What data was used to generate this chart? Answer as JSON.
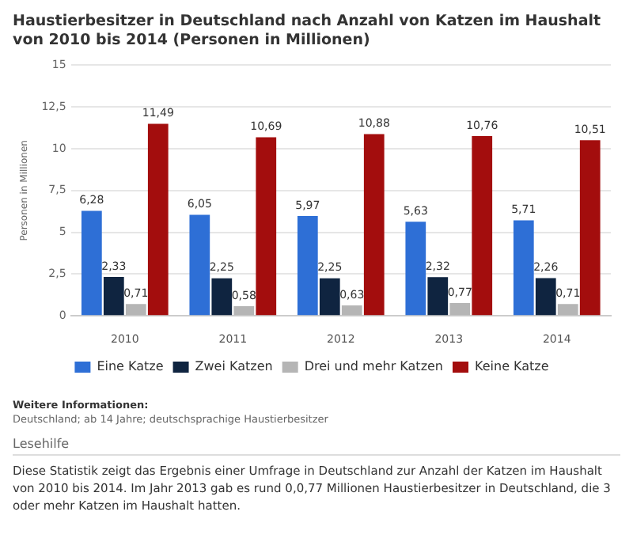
{
  "chart_data": {
    "type": "bar",
    "title": "Haustierbesitzer in Deutschland nach Anzahl von Katzen im Haushalt von 2010 bis 2014 (Personen in Millionen)",
    "ylabel": "Personen in Millionen",
    "categories": [
      "2010",
      "2011",
      "2012",
      "2013",
      "2014"
    ],
    "series": [
      {
        "name": "Eine Katze",
        "color": "#2e6fd6",
        "values": [
          6.28,
          6.05,
          5.97,
          5.63,
          5.71
        ],
        "value_labels": [
          "6,28",
          "6,05",
          "5,97",
          "5,63",
          "5,71"
        ]
      },
      {
        "name": "Zwei Katzen",
        "color": "#0f2440",
        "values": [
          2.33,
          2.25,
          2.25,
          2.32,
          2.26
        ],
        "value_labels": [
          "2,33",
          "2,25",
          "2,25",
          "2,32",
          "2,26"
        ]
      },
      {
        "name": "Drei und mehr Katzen",
        "color": "#b5b5b5",
        "values": [
          0.71,
          0.58,
          0.63,
          0.77,
          0.71
        ],
        "value_labels": [
          "0,71",
          "0,58",
          "0,63",
          "0,77",
          "0,71"
        ]
      },
      {
        "name": "Keine Katze",
        "color": "#a30d0d",
        "values": [
          11.49,
          10.69,
          10.88,
          10.76,
          10.51
        ],
        "value_labels": [
          "11,49",
          "10,69",
          "10,88",
          "10,76",
          "10,51"
        ]
      }
    ],
    "ylim": [
      0,
      15
    ],
    "yticks": [
      0,
      {
        "value": 2.5,
        "label": "2,5"
      },
      5,
      {
        "value": 7.5,
        "label": "7,5"
      },
      10,
      {
        "value": 12.5,
        "label": "12,5"
      },
      15
    ],
    "grid": "y",
    "legend": "bottom",
    "annotations": [
      "Weitere Informationen:",
      "Deutschland; ab 14 Jahre; deutschsprachige Haustierbesitzer",
      "Lesehilfe",
      "Diese Statistik zeigt das Ergebnis einer Umfrage in Deutschland zur Anzahl der Katzen im Haushalt von 2010 bis 2014. Im Jahr 2013 gab es rund 0,0,77 Millionen Haustierbesitzer in Deutschland, die 3 oder mehr Katzen im Haushalt hatten."
    ]
  }
}
